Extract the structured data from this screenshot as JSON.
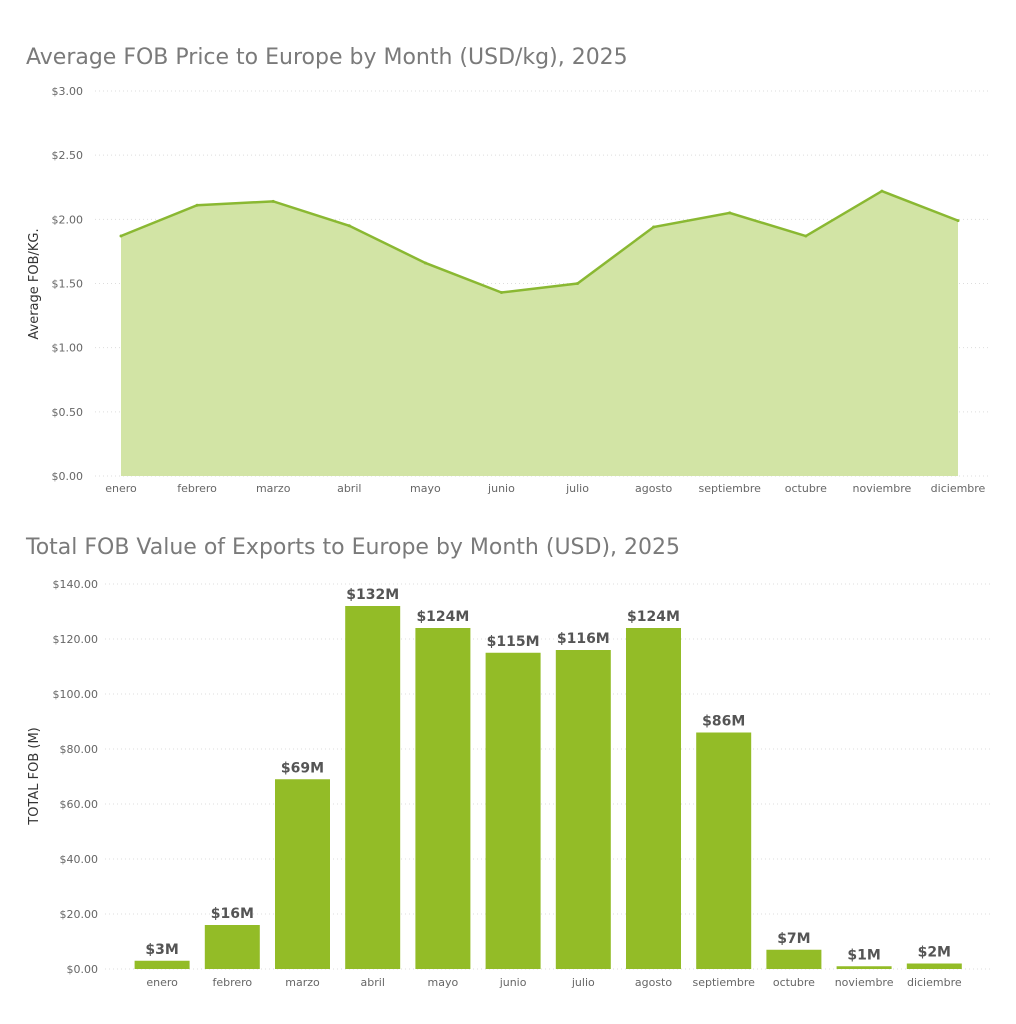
{
  "chart_data": [
    {
      "type": "area",
      "title": "Average FOB Price to Europe by Month (USD/kg), 2025",
      "xlabel": "",
      "ylabel": "Average FOB/KG.",
      "categories": [
        "enero",
        "febrero",
        "marzo",
        "abril",
        "mayo",
        "junio",
        "julio",
        "agosto",
        "septiembre",
        "octubre",
        "noviembre",
        "diciembre"
      ],
      "values": [
        1.87,
        2.11,
        2.14,
        1.95,
        1.66,
        1.43,
        1.5,
        1.94,
        2.05,
        1.87,
        2.22,
        1.99
      ],
      "ylim": [
        0,
        3
      ],
      "yticks": [
        "$0.00",
        "$0.50",
        "$1.00",
        "$1.50",
        "$2.00",
        "$2.50",
        "$3.00"
      ],
      "grid": true,
      "colors": {
        "line": "#8ab832",
        "fill": "#d2e4a5"
      }
    },
    {
      "type": "bar",
      "title": "Total FOB Value of Exports to Europe by Month (USD), 2025",
      "xlabel": "",
      "ylabel": "TOTAL FOB (M)",
      "categories": [
        "enero",
        "febrero",
        "marzo",
        "abril",
        "mayo",
        "junio",
        "julio",
        "agosto",
        "septiembre",
        "octubre",
        "noviembre",
        "diciembre"
      ],
      "values": [
        3,
        16,
        69,
        132,
        124,
        115,
        116,
        124,
        86,
        7,
        1,
        2
      ],
      "data_labels": [
        "$3M",
        "$16M",
        "$69M",
        "$132M",
        "$124M",
        "$115M",
        "$116M",
        "$124M",
        "$86M",
        "$7M",
        "$1M",
        "$2M"
      ],
      "ylim": [
        0,
        140
      ],
      "yticks": [
        "$0.00",
        "$20.00",
        "$40.00",
        "$60.00",
        "$80.00",
        "$100.00",
        "$120.00",
        "$140.00"
      ],
      "grid": true,
      "colors": {
        "bar": "#93bc27"
      }
    }
  ]
}
